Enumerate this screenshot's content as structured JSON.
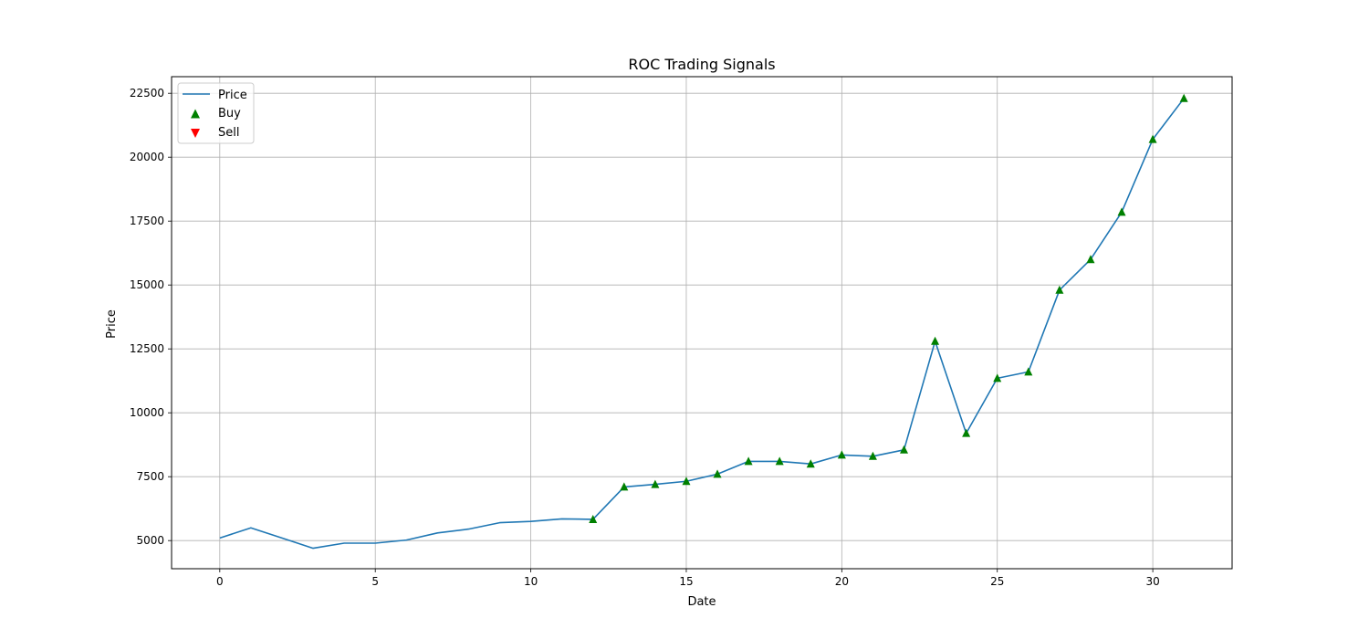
{
  "chart_data": {
    "type": "line",
    "title": "ROC Trading Signals",
    "xlabel": "Date",
    "ylabel": "Price",
    "xlim": [
      -1.55,
      32.55
    ],
    "ylim": [
      3900,
      23150
    ],
    "x_ticks": [
      0,
      5,
      10,
      15,
      20,
      25,
      30
    ],
    "y_ticks": [
      5000,
      7500,
      10000,
      12500,
      15000,
      17500,
      20000,
      22500
    ],
    "grid": true,
    "legend_position": "top-left",
    "legend": [
      "Price",
      "Buy",
      "Sell"
    ],
    "colors": {
      "price": "#1f77b4",
      "buy": "#008000",
      "sell": "#ff0000",
      "grid": "#b0b0b0"
    },
    "series": [
      {
        "name": "Price",
        "x": [
          0,
          1,
          2,
          3,
          4,
          5,
          6,
          7,
          8,
          9,
          10,
          11,
          12,
          13,
          14,
          15,
          16,
          17,
          18,
          19,
          20,
          21,
          22,
          23,
          24,
          25,
          26,
          27,
          28,
          29,
          30,
          31
        ],
        "values": [
          5100,
          5500,
          5100,
          4700,
          4900,
          4900,
          5020,
          5300,
          5450,
          5700,
          5750,
          5850,
          5830,
          7100,
          7200,
          7320,
          7600,
          8100,
          8100,
          8000,
          8350,
          8300,
          8550,
          12800,
          9200,
          11350,
          11600,
          14800,
          16000,
          17850,
          20700,
          22300
        ]
      },
      {
        "name": "Buy",
        "x": [
          12,
          13,
          14,
          15,
          16,
          17,
          18,
          19,
          20,
          21,
          22,
          23,
          24,
          25,
          26,
          27,
          28,
          29,
          30,
          31
        ],
        "values": [
          5830,
          7100,
          7200,
          7320,
          7600,
          8100,
          8100,
          8000,
          8350,
          8300,
          8550,
          12800,
          9200,
          11350,
          11600,
          14800,
          16000,
          17850,
          20700,
          22300
        ]
      },
      {
        "name": "Sell",
        "x": [],
        "values": []
      }
    ]
  }
}
